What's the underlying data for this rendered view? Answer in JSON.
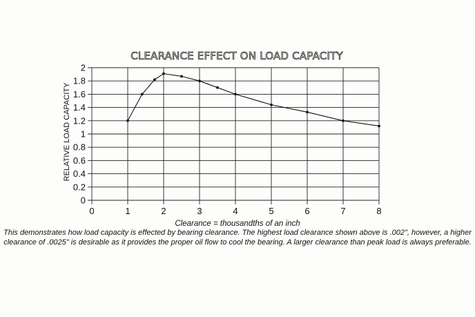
{
  "chart_data": {
    "type": "line",
    "title": "CLEARANCE EFFECT ON LOAD CAPACITY",
    "xlabel": "Clearance = thousandths of an inch",
    "ylabel": "RELATIVE LOAD CAPACITY",
    "x_ticks": [
      "0",
      "1",
      "2",
      "3",
      "4",
      "5",
      "6",
      "7",
      "8"
    ],
    "y_ticks": [
      "0",
      "0.2",
      "0.4",
      "0.6",
      "0.8",
      "1",
      "1.2",
      "1.4",
      "1.6",
      "1.8",
      "2"
    ],
    "xlim": [
      0,
      8
    ],
    "ylim": [
      0,
      2
    ],
    "grid": true,
    "series": [
      {
        "x": [
          1,
          1.4,
          1.75,
          2,
          2.5,
          3,
          3.5,
          4,
          5,
          6,
          7,
          8
        ],
        "y": [
          1.2,
          1.6,
          1.82,
          1.91,
          1.87,
          1.8,
          1.7,
          1.6,
          1.44,
          1.33,
          1.2,
          1.12
        ]
      }
    ],
    "caption": "This demonstrates how load capacity is effected by bearing clearance. The highest load clearance shown above is .002\", however, a higher clearance of .0025\" is desirable as it provides the proper oil flow to cool the bearing. A larger clearance than peak load is always preferable."
  }
}
